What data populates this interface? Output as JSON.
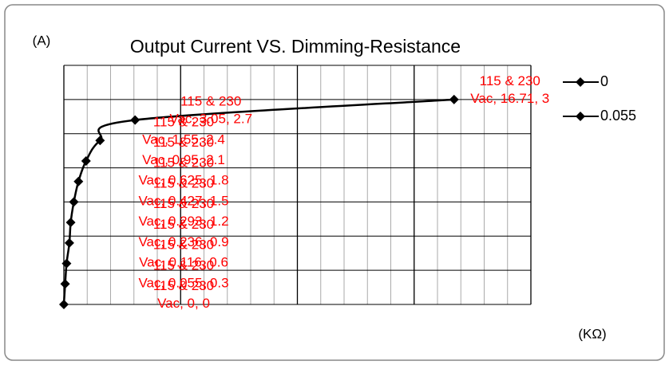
{
  "chart_data": {
    "type": "scatter",
    "title": "Output Current VS. Dimming-Resistance",
    "y_axis_label": "(A)",
    "x_axis_label": "(KΩ)",
    "legend": [
      "0",
      "0.055"
    ],
    "legend_position": "right",
    "color": "#000000",
    "label_color": "#ff0000",
    "x": [
      0,
      0.055,
      0.116,
      0.236,
      0.293,
      0.427,
      0.625,
      0.95,
      1.55,
      3.05,
      16.71
    ],
    "values": [
      0,
      0.3,
      0.6,
      0.9,
      1.2,
      1.5,
      1.8,
      2.1,
      2.4,
      2.7,
      3
    ],
    "value_labels": [
      "115 & 230 Vac, 0, 0",
      "115 & 230 Vac, 0.055, 0.3",
      "115 & 230 Vac, 0.116, 0.6",
      "115 & 230 Vac, 0.236, 0.9",
      "115 & 230 Vac, 0.293, 1.2",
      "115 & 230 Vac, 0.427, 1.5",
      "115 & 230 Vac, 0.625, 1.8",
      "115 & 230 Vac, 0.95, 2.1",
      "115 & 230 Vac, 1.55, 2.4",
      "115 & 230 Vac, 3.05, 2.7",
      "115 & 230 Vac, 16.71, 3"
    ],
    "xlim": [
      0,
      20
    ],
    "xticks": [
      0,
      5,
      10,
      15,
      20
    ],
    "x_minor_step": 1,
    "ylim": [
      0,
      3.5
    ],
    "yticks": [
      0,
      0.5,
      1,
      1.5,
      2,
      2.5,
      3,
      3.5
    ],
    "grid": true
  }
}
